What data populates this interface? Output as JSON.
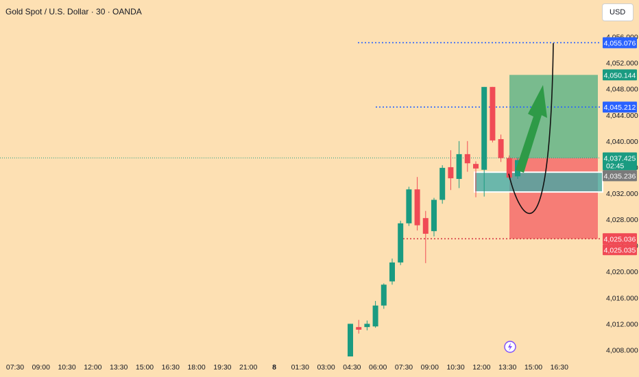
{
  "header": {
    "title": "Gold Spot / U.S. Dollar · 30 · OANDA",
    "currency": "USD"
  },
  "colors": {
    "bg": "#fde0b3",
    "up": "#1a9b81",
    "down": "#f04a55",
    "blue": "#2962ff",
    "grid": "#f2d4a6"
  },
  "chart_data": {
    "type": "candlestick",
    "title": "Gold Spot / U.S. Dollar · 30 · OANDA",
    "ylim": [
      4007,
      4057
    ],
    "y_ticks": [
      {
        "value": 4056,
        "label": "4,056.000"
      },
      {
        "value": 4052,
        "label": "4,052.000"
      },
      {
        "value": 4048,
        "label": "4,048.000"
      },
      {
        "value": 4044,
        "label": "4,044.000"
      },
      {
        "value": 4040,
        "label": "4,040.000"
      },
      {
        "value": 4036,
        "label": "4,036.000"
      },
      {
        "value": 4032,
        "label": "4,032.000"
      },
      {
        "value": 4028,
        "label": "4,028.000"
      },
      {
        "value": 4024,
        "label": "4,024.000"
      },
      {
        "value": 4020,
        "label": "4,020.000"
      },
      {
        "value": 4016,
        "label": "4,016.000"
      },
      {
        "value": 4012,
        "label": "4,012.000"
      },
      {
        "value": 4008,
        "label": "4,008.000"
      }
    ],
    "x_ticks": [
      "07:30",
      "09:00",
      "10:30",
      "12:00",
      "13:30",
      "15:00",
      "16:30",
      "18:00",
      "19:30",
      "21:00",
      "8",
      "01:30",
      "03:00",
      "04:30",
      "06:00",
      "07:30",
      "09:00",
      "10:30",
      "12:00",
      "13:30",
      "15:00",
      "16:30"
    ],
    "candles": [
      {
        "o": 4007.0,
        "h": 4012.0,
        "l": 4007.0,
        "c": 4012.0
      },
      {
        "o": 4011.5,
        "h": 4012.6,
        "l": 4010.5,
        "c": 4011.1
      },
      {
        "o": 4011.5,
        "h": 4012.5,
        "l": 4011.0,
        "c": 4012.0
      },
      {
        "o": 4011.6,
        "h": 4015.5,
        "l": 4011.4,
        "c": 4014.8
      },
      {
        "o": 4014.8,
        "h": 4018.2,
        "l": 4014.3,
        "c": 4018.0
      },
      {
        "o": 4018.5,
        "h": 4022.0,
        "l": 4018.0,
        "c": 4021.4
      },
      {
        "o": 4021.4,
        "h": 4027.8,
        "l": 4021.0,
        "c": 4027.4
      },
      {
        "o": 4027.4,
        "h": 4033.0,
        "l": 4027.0,
        "c": 4032.6
      },
      {
        "o": 4032.6,
        "h": 4034.5,
        "l": 4026.3,
        "c": 4027.1
      },
      {
        "o": 4028.2,
        "h": 4029.3,
        "l": 4021.3,
        "c": 4025.8
      },
      {
        "o": 4026.2,
        "h": 4031.3,
        "l": 4025.4,
        "c": 4031.0
      },
      {
        "o": 4031.0,
        "h": 4036.3,
        "l": 4030.4,
        "c": 4035.9
      },
      {
        "o": 4036.0,
        "h": 4038.6,
        "l": 4032.5,
        "c": 4034.3
      },
      {
        "o": 4034.2,
        "h": 4040.0,
        "l": 4032.8,
        "c": 4038.0
      },
      {
        "o": 4038.0,
        "h": 4040.0,
        "l": 4035.3,
        "c": 4036.6
      },
      {
        "o": 4036.5,
        "h": 4036.9,
        "l": 4031.4,
        "c": 4035.8
      },
      {
        "o": 4035.6,
        "h": 4048.3,
        "l": 4031.5,
        "c": 4048.3
      },
      {
        "o": 4048.3,
        "h": 4048.3,
        "l": 4039.8,
        "c": 4040.1
      },
      {
        "o": 4040.3,
        "h": 4041.0,
        "l": 4036.8,
        "c": 4037.4
      },
      {
        "o": 4037.4,
        "h": 4037.8,
        "l": 4034.1,
        "c": 4034.4
      },
      {
        "o": 4034.6,
        "h": 4037.5,
        "l": 4034.2,
        "c": 4037.1
      }
    ],
    "price_badges": [
      {
        "value": 4055.076,
        "label": "4,055.076",
        "color": "#2962ff"
      },
      {
        "value": 4050.144,
        "label": "4,050.144",
        "color": "#1a9b81"
      },
      {
        "value": 4045.212,
        "label": "4,045.212",
        "color": "#2962ff"
      },
      {
        "value": 4037.425,
        "label": "4,037.425",
        "sub": "02:45",
        "color": "#1a9b81"
      },
      {
        "value": 4035.236,
        "label": "4,035.236",
        "color": "#7a7a7a"
      },
      {
        "value": 4025.036,
        "label": "4,025.036",
        "color": "#f04a55"
      },
      {
        "value": 4025.035,
        "label": "4,025.035",
        "color": "#f04a55"
      }
    ],
    "levels": {
      "target_high": 4055.076,
      "target": 4045.212,
      "current": 4037.425,
      "stop": 4025.035,
      "zone_top": 4035.236,
      "zone_bottom": 4032.2
    },
    "position": {
      "entry": 4037.4,
      "take_profit": 4050.144,
      "stop_loss": 4025.036
    }
  }
}
